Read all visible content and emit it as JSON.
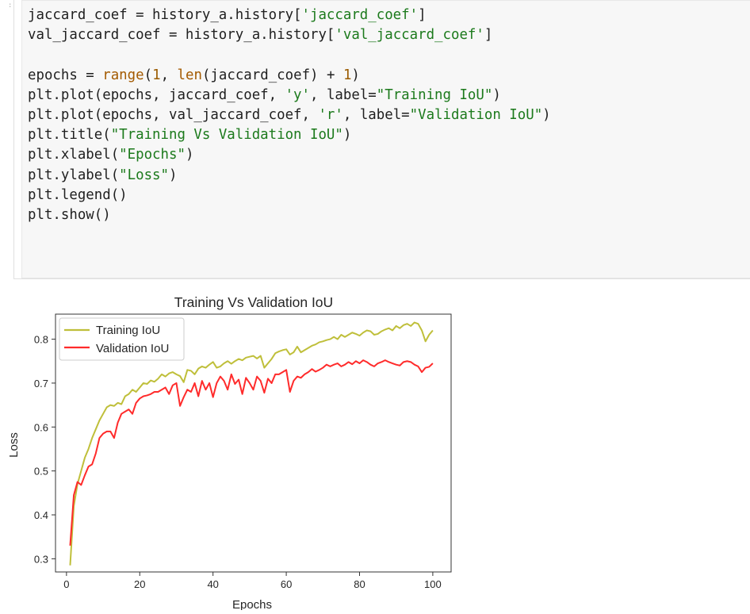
{
  "cell": {
    "gutter_marker": ":",
    "code_lines": [
      [
        {
          "t": "jaccard_coef = history_a.history["
        },
        {
          "t": "'jaccard_coef'",
          "c": "str"
        },
        {
          "t": "]"
        }
      ],
      [
        {
          "t": "val_jaccard_coef = history_a.history["
        },
        {
          "t": "'val_jaccard_coef'",
          "c": "str"
        },
        {
          "t": "]"
        }
      ],
      [],
      [
        {
          "t": "epochs = "
        },
        {
          "t": "range",
          "c": "bi"
        },
        {
          "t": "("
        },
        {
          "t": "1",
          "c": "num"
        },
        {
          "t": ", "
        },
        {
          "t": "len",
          "c": "bi"
        },
        {
          "t": "(jaccard_coef) + "
        },
        {
          "t": "1",
          "c": "num"
        },
        {
          "t": ")"
        }
      ],
      [
        {
          "t": "plt.plot(epochs, jaccard_coef, "
        },
        {
          "t": "'y'",
          "c": "str"
        },
        {
          "t": ", label="
        },
        {
          "t": "\"Training IoU\"",
          "c": "str"
        },
        {
          "t": ")"
        }
      ],
      [
        {
          "t": "plt.plot(epochs, val_jaccard_coef, "
        },
        {
          "t": "'r'",
          "c": "str"
        },
        {
          "t": ", label="
        },
        {
          "t": "\"Validation IoU\"",
          "c": "str"
        },
        {
          "t": ")"
        }
      ],
      [
        {
          "t": "plt.title("
        },
        {
          "t": "\"Training Vs Validation IoU\"",
          "c": "str"
        },
        {
          "t": ")"
        }
      ],
      [
        {
          "t": "plt.xlabel("
        },
        {
          "t": "\"Epochs\"",
          "c": "str"
        },
        {
          "t": ")"
        }
      ],
      [
        {
          "t": "plt.ylabel("
        },
        {
          "t": "\"Loss\"",
          "c": "str"
        },
        {
          "t": ")"
        }
      ],
      [
        {
          "t": "plt.legend()"
        }
      ],
      [
        {
          "t": "plt.show()"
        }
      ]
    ]
  },
  "colors": {
    "training": "#bfbf3a",
    "validation": "#ff2b2b",
    "string": "#1c7a1c",
    "number": "#9a5b00"
  },
  "chart_data": {
    "type": "line",
    "title": "Training Vs Validation IoU",
    "xlabel": "Epochs",
    "ylabel": "Loss",
    "xlim": [
      -3,
      105
    ],
    "ylim": [
      0.27,
      0.857
    ],
    "xticks": [
      0,
      20,
      40,
      60,
      80,
      100
    ],
    "yticks": [
      0.3,
      0.4,
      0.5,
      0.6,
      0.7,
      0.8
    ],
    "grid": false,
    "legend_position": "upper-left",
    "x": [
      1,
      2,
      3,
      4,
      5,
      6,
      7,
      8,
      9,
      10,
      11,
      12,
      13,
      14,
      15,
      16,
      17,
      18,
      19,
      20,
      21,
      22,
      23,
      24,
      25,
      26,
      27,
      28,
      29,
      30,
      31,
      32,
      33,
      34,
      35,
      36,
      37,
      38,
      39,
      40,
      41,
      42,
      43,
      44,
      45,
      46,
      47,
      48,
      49,
      50,
      51,
      52,
      53,
      54,
      55,
      56,
      57,
      58,
      59,
      60,
      61,
      62,
      63,
      64,
      65,
      66,
      67,
      68,
      69,
      70,
      71,
      72,
      73,
      74,
      75,
      76,
      77,
      78,
      79,
      80,
      81,
      82,
      83,
      84,
      85,
      86,
      87,
      88,
      89,
      90,
      91,
      92,
      93,
      94,
      95,
      96,
      97,
      98,
      99,
      100
    ],
    "series": [
      {
        "name": "Training IoU",
        "color": "#bfbf3a",
        "values": [
          0.285,
          0.42,
          0.47,
          0.5,
          0.53,
          0.55,
          0.575,
          0.595,
          0.615,
          0.63,
          0.645,
          0.65,
          0.648,
          0.655,
          0.652,
          0.67,
          0.675,
          0.685,
          0.68,
          0.69,
          0.7,
          0.698,
          0.706,
          0.703,
          0.71,
          0.72,
          0.715,
          0.722,
          0.725,
          0.72,
          0.716,
          0.702,
          0.73,
          0.728,
          0.72,
          0.733,
          0.738,
          0.735,
          0.742,
          0.748,
          0.735,
          0.738,
          0.745,
          0.75,
          0.744,
          0.75,
          0.755,
          0.752,
          0.758,
          0.76,
          0.762,
          0.756,
          0.762,
          0.735,
          0.745,
          0.755,
          0.768,
          0.772,
          0.775,
          0.777,
          0.765,
          0.77,
          0.783,
          0.77,
          0.775,
          0.78,
          0.785,
          0.788,
          0.793,
          0.795,
          0.798,
          0.8,
          0.805,
          0.8,
          0.81,
          0.805,
          0.81,
          0.815,
          0.812,
          0.808,
          0.815,
          0.82,
          0.818,
          0.81,
          0.812,
          0.818,
          0.822,
          0.825,
          0.82,
          0.83,
          0.825,
          0.832,
          0.835,
          0.83,
          0.838,
          0.835,
          0.82,
          0.795,
          0.81,
          0.82
        ]
      },
      {
        "name": "Validation IoU",
        "color": "#ff2b2b",
        "values": [
          0.33,
          0.445,
          0.475,
          0.468,
          0.49,
          0.51,
          0.515,
          0.54,
          0.575,
          0.585,
          0.59,
          0.59,
          0.575,
          0.61,
          0.63,
          0.635,
          0.64,
          0.63,
          0.655,
          0.665,
          0.67,
          0.672,
          0.675,
          0.68,
          0.68,
          0.685,
          0.69,
          0.675,
          0.695,
          0.7,
          0.648,
          0.668,
          0.685,
          0.68,
          0.7,
          0.67,
          0.705,
          0.685,
          0.7,
          0.668,
          0.7,
          0.715,
          0.705,
          0.685,
          0.72,
          0.698,
          0.708,
          0.675,
          0.712,
          0.7,
          0.685,
          0.715,
          0.705,
          0.678,
          0.71,
          0.7,
          0.72,
          0.72,
          0.725,
          0.73,
          0.68,
          0.705,
          0.715,
          0.712,
          0.72,
          0.725,
          0.732,
          0.726,
          0.73,
          0.735,
          0.742,
          0.738,
          0.742,
          0.745,
          0.738,
          0.742,
          0.748,
          0.743,
          0.75,
          0.745,
          0.752,
          0.748,
          0.742,
          0.738,
          0.745,
          0.748,
          0.752,
          0.748,
          0.745,
          0.742,
          0.74,
          0.748,
          0.75,
          0.748,
          0.742,
          0.738,
          0.725,
          0.735,
          0.737,
          0.745
        ]
      }
    ]
  }
}
